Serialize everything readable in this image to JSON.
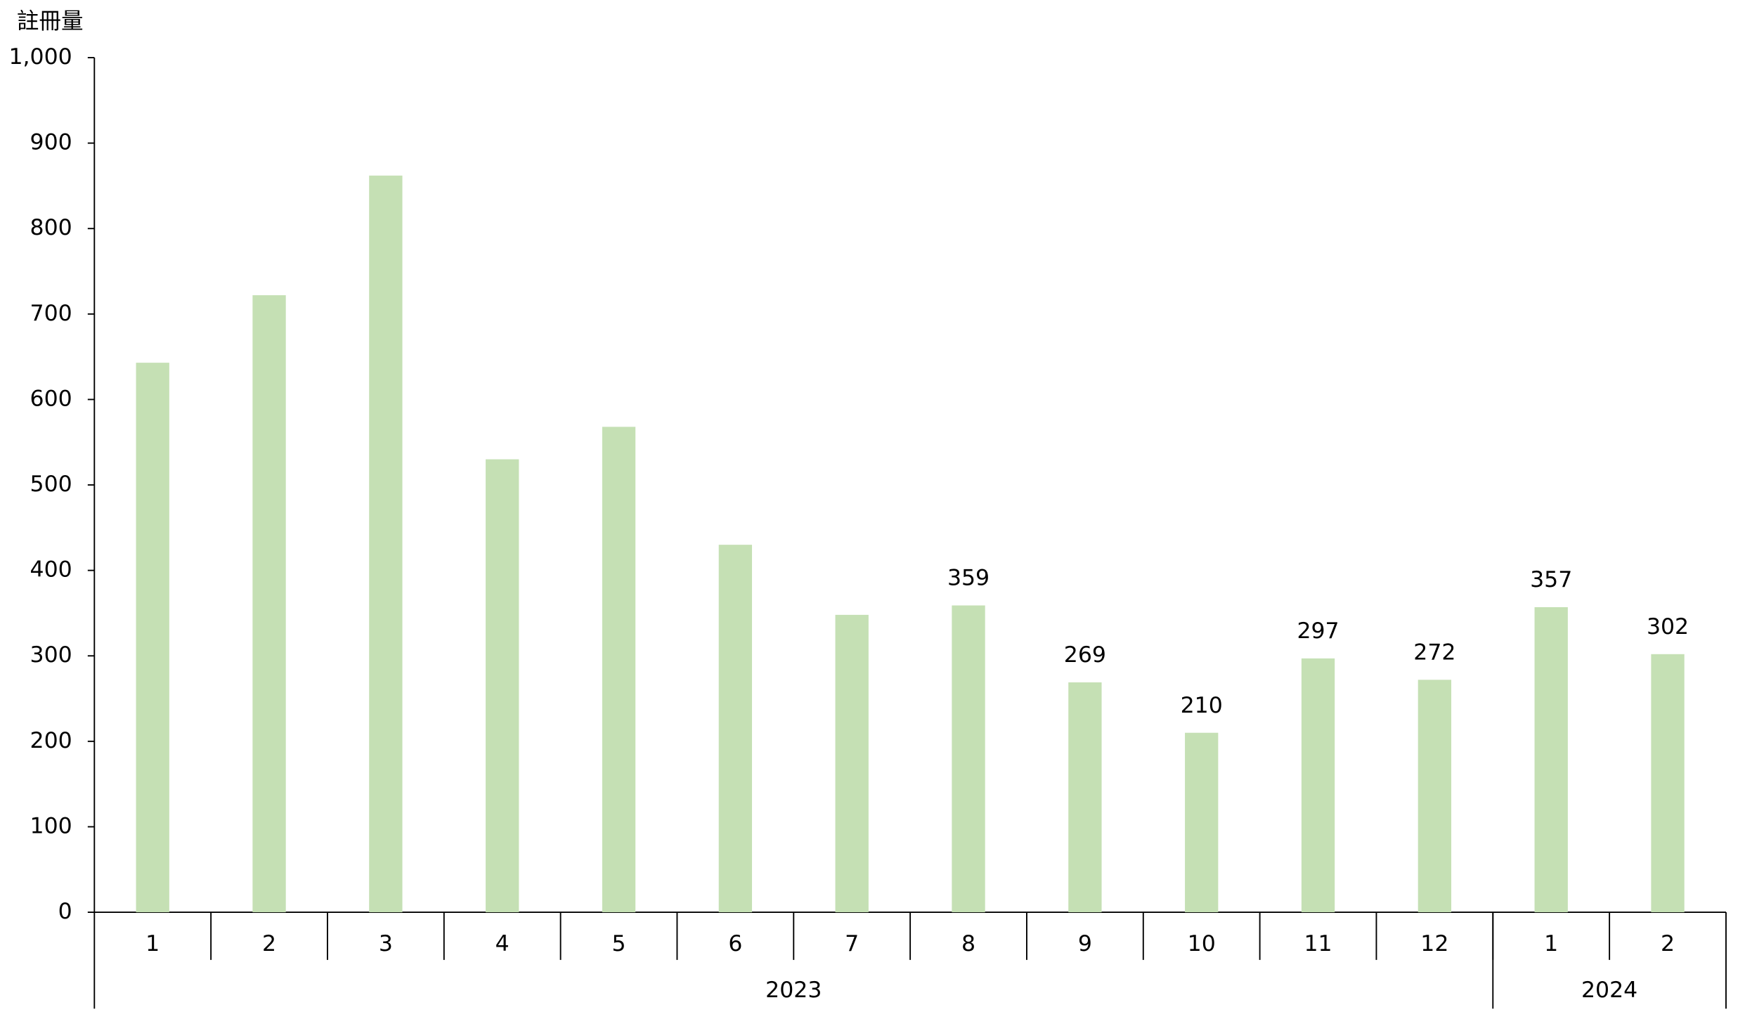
{
  "chart_data": {
    "type": "bar",
    "y_label": "註冊量",
    "categories": [
      "1",
      "2",
      "3",
      "4",
      "5",
      "6",
      "7",
      "8",
      "9",
      "10",
      "11",
      "12",
      "1",
      "2"
    ],
    "groups": [
      {
        "name": "2023",
        "count": 12
      },
      {
        "name": "2024",
        "count": 2
      }
    ],
    "values": [
      643,
      722,
      862,
      530,
      568,
      430,
      348,
      359,
      269,
      210,
      297,
      272,
      357,
      302
    ],
    "value_labels": [
      null,
      null,
      null,
      null,
      null,
      null,
      null,
      "359",
      "269",
      "210",
      "297",
      "272",
      "357",
      "302"
    ],
    "color": "#c5e0b4",
    "ylim": [
      0,
      1000
    ],
    "yticks": [
      0,
      100,
      200,
      300,
      400,
      500,
      600,
      700,
      800,
      900,
      {
        "value": 1000,
        "label": "1,000"
      }
    ],
    "grid": false
  }
}
